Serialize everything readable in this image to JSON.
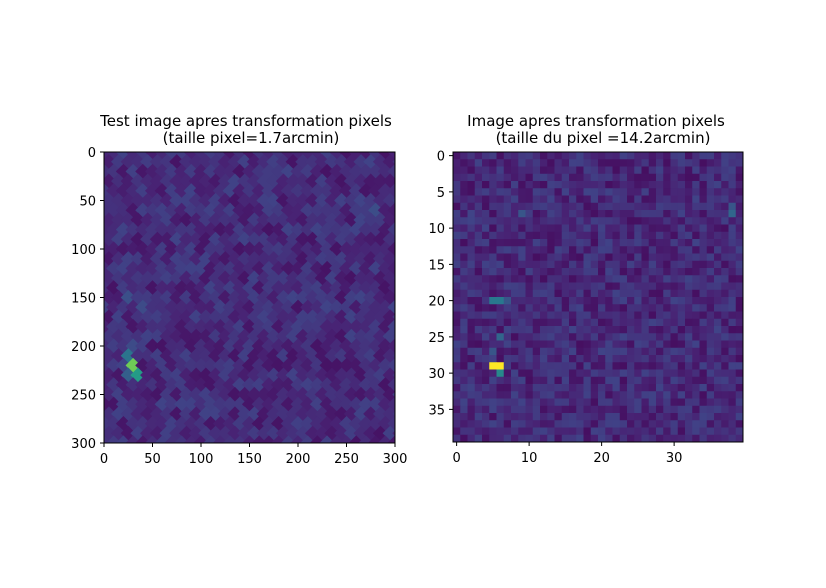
{
  "chart_data": [
    {
      "type": "heatmap",
      "title": "Test image apres transformation pixels",
      "subtitle": "(taille pixel=1.7arcmin)",
      "xlabel": "",
      "ylabel": "",
      "xlim": [
        0,
        300
      ],
      "ylim": [
        300,
        0
      ],
      "x_ticks": [
        "0",
        "50",
        "100",
        "150",
        "200",
        "250",
        "300"
      ],
      "y_ticks": [
        "0",
        "50",
        "100",
        "150",
        "200",
        "250",
        "300"
      ],
      "y_inverted": true,
      "colormap": "viridis",
      "grid": false,
      "hotspots": [
        {
          "x": 28,
          "y": 223,
          "level": 1.0
        },
        {
          "x": 33,
          "y": 230,
          "level": 0.6
        },
        {
          "x": 27,
          "y": 212,
          "level": 0.5
        },
        {
          "x": 32,
          "y": 204,
          "level": 0.45
        },
        {
          "x": 35,
          "y": 196,
          "level": 0.4
        },
        {
          "x": 28,
          "y": 147,
          "level": 0.45
        },
        {
          "x": 37,
          "y": 158,
          "level": 0.4
        },
        {
          "x": 57,
          "y": 62,
          "level": 0.35
        },
        {
          "x": 52,
          "y": 112,
          "level": 0.3
        },
        {
          "x": 280,
          "y": 58,
          "level": 0.35
        },
        {
          "x": 195,
          "y": 150,
          "level": 0.3
        }
      ]
    },
    {
      "type": "heatmap",
      "title": "Image apres transformation pixels",
      "subtitle": "(taille du pixel =14.2arcmin)",
      "xlabel": "",
      "ylabel": "",
      "xlim": [
        -0.5,
        39.5
      ],
      "ylim": [
        39.5,
        -0.5
      ],
      "x_ticks": [
        "0",
        "10",
        "20",
        "30"
      ],
      "y_ticks": [
        "0",
        "5",
        "10",
        "15",
        "20",
        "25",
        "30",
        "35"
      ],
      "y_inverted": true,
      "colormap": "viridis",
      "grid": false,
      "hotspots": [
        {
          "x": 5,
          "y": 29,
          "level": 1.0
        },
        {
          "x": 6,
          "y": 29,
          "level": 1.0
        },
        {
          "x": 6,
          "y": 30,
          "level": 0.5
        },
        {
          "x": 5,
          "y": 20,
          "level": 0.45
        },
        {
          "x": 6,
          "y": 20,
          "level": 0.45
        },
        {
          "x": 7,
          "y": 20,
          "level": 0.35
        },
        {
          "x": 6,
          "y": 25,
          "level": 0.4
        },
        {
          "x": 5,
          "y": 27,
          "level": 0.35
        },
        {
          "x": 9,
          "y": 8,
          "level": 0.35
        },
        {
          "x": 38,
          "y": 8,
          "level": 0.4
        },
        {
          "x": 38,
          "y": 7,
          "level": 0.35
        },
        {
          "x": 20,
          "y": 27,
          "level": 0.3
        }
      ]
    }
  ]
}
